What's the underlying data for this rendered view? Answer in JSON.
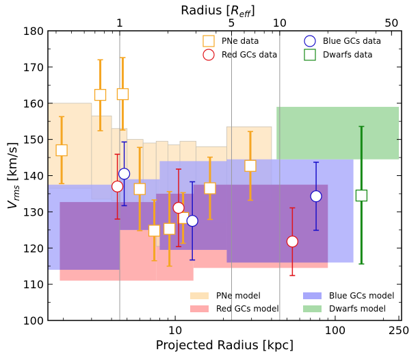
{
  "chart_data": {
    "type": "scatter",
    "xlabel": "Projected Radius [kpc]",
    "ylabel_main": "V",
    "ylabel_sub": "rms",
    "ylabel_units": " [km/s]",
    "top_xlabel_main": "Radius [",
    "top_xlabel_sub": "eff",
    "top_xlabel_end": "]",
    "top_xlabel_R": "R",
    "xscale": "log",
    "xlim": [
      1.6,
      260
    ],
    "ylim": [
      100,
      180
    ],
    "yticks": [
      100,
      110,
      120,
      130,
      140,
      150,
      160,
      170,
      180
    ],
    "xticks": [
      {
        "value": 10,
        "label": "10"
      },
      {
        "value": 100,
        "label": "100"
      },
      {
        "value": 250,
        "label": "250"
      }
    ],
    "top_xticks": [
      {
        "value": 4.5,
        "label": "1"
      },
      {
        "value": 22.5,
        "label": "5"
      },
      {
        "value": 45,
        "label": "10"
      },
      {
        "value": 225,
        "label": "50"
      }
    ],
    "vlines": [
      4.5,
      22.5,
      45
    ],
    "colors": {
      "pne": "#f5a623",
      "pne_fill": "#fde2b8",
      "red": "#e0151b",
      "red_fill": "#ffadad",
      "blue": "#1b12c9",
      "blue_fill": "#a8a8fb",
      "green": "#178a17",
      "green_fill": "#a9dba9",
      "overlap": "#a571c4"
    },
    "models": {
      "pne": [
        {
          "x": [
            1.6,
            3.0
          ],
          "y": [
            136.5,
            160.0
          ]
        },
        {
          "x": [
            3.0,
            4.0
          ],
          "y": [
            133.5,
            156.5
          ]
        },
        {
          "x": [
            4.0,
            5.0
          ],
          "y": [
            133.0,
            153.0
          ]
        },
        {
          "x": [
            5.0,
            6.3
          ],
          "y": [
            128.5,
            150.0
          ]
        },
        {
          "x": [
            6.3,
            7.6
          ],
          "y": [
            126.5,
            149.0
          ]
        },
        {
          "x": [
            7.6,
            9.0
          ],
          "y": [
            120.5,
            149.5
          ]
        },
        {
          "x": [
            9.0,
            10.7
          ],
          "y": [
            127.0,
            148.5
          ]
        },
        {
          "x": [
            10.7,
            13.5
          ],
          "y": [
            128.0,
            149.5
          ]
        },
        {
          "x": [
            13.5,
            21.0
          ],
          "y": [
            127.0,
            148.0
          ]
        },
        {
          "x": [
            21.0,
            40.0
          ],
          "y": [
            133.0,
            153.5
          ]
        }
      ],
      "red": [
        {
          "x": [
            1.9,
            7.6
          ],
          "y": [
            111.0,
            132.7
          ]
        },
        {
          "x": [
            7.6,
            13.0
          ],
          "y": [
            111.0,
            135.0
          ]
        },
        {
          "x": [
            13.0,
            90.0
          ],
          "y": [
            114.5,
            137.5
          ]
        }
      ],
      "blue": [
        {
          "x": [
            1.6,
            4.5
          ],
          "y": [
            114.0,
            137.5
          ]
        },
        {
          "x": [
            4.5,
            8.0
          ],
          "y": [
            125.0,
            139.0
          ]
        },
        {
          "x": [
            8.0,
            21.0
          ],
          "y": [
            119.5,
            144.0
          ]
        },
        {
          "x": [
            21.0,
            130.0
          ],
          "y": [
            116.0,
            144.5
          ]
        }
      ],
      "dwarfs": [
        {
          "x": [
            43.0,
            250.0
          ],
          "y": [
            144.5,
            159.0
          ]
        }
      ]
    },
    "series": [
      {
        "name": "PNe data",
        "marker": "square",
        "color_key": "pne",
        "points": [
          {
            "x": 1.95,
            "y": 147.0,
            "lo": 137.8,
            "hi": 156.3
          },
          {
            "x": 3.4,
            "y": 162.3,
            "lo": 152.4,
            "hi": 172.0
          },
          {
            "x": 4.7,
            "y": 162.5,
            "lo": 152.6,
            "hi": 172.6
          },
          {
            "x": 6.0,
            "y": 136.3,
            "lo": 124.8,
            "hi": 147.8
          },
          {
            "x": 7.4,
            "y": 124.8,
            "lo": 116.5,
            "hi": 133.3
          },
          {
            "x": 9.2,
            "y": 125.3,
            "lo": 115.0,
            "hi": 135.6
          },
          {
            "x": 11.2,
            "y": 128.3,
            "lo": 121.3,
            "hi": 135.3
          },
          {
            "x": 16.5,
            "y": 136.5,
            "lo": 127.9,
            "hi": 145.1
          },
          {
            "x": 29.5,
            "y": 142.7,
            "lo": 133.2,
            "hi": 152.2
          }
        ]
      },
      {
        "name": "Red GCs data",
        "marker": "circle",
        "color_key": "red",
        "points": [
          {
            "x": 4.35,
            "y": 137.0,
            "lo": 128.0,
            "hi": 145.9
          },
          {
            "x": 10.5,
            "y": 131.1,
            "lo": 120.4,
            "hi": 141.8
          },
          {
            "x": 54.0,
            "y": 121.8,
            "lo": 112.4,
            "hi": 131.1
          }
        ]
      },
      {
        "name": "Blue GCs data",
        "marker": "circle",
        "color_key": "blue",
        "points": [
          {
            "x": 4.8,
            "y": 140.5,
            "lo": 131.7,
            "hi": 149.3
          },
          {
            "x": 12.8,
            "y": 127.5,
            "lo": 116.7,
            "hi": 138.3
          },
          {
            "x": 76.0,
            "y": 134.3,
            "lo": 124.9,
            "hi": 143.7
          }
        ]
      },
      {
        "name": "Dwarfs data",
        "marker": "square",
        "color_key": "green",
        "points": [
          {
            "x": 146.0,
            "y": 134.5,
            "lo": 115.6,
            "hi": 153.6
          }
        ]
      }
    ],
    "legend_top": [
      {
        "label": "PNe data",
        "marker": "square",
        "color_key": "pne"
      },
      {
        "label": "Blue GCs data",
        "marker": "circle",
        "color_key": "blue"
      },
      {
        "label": "Red GCs data",
        "marker": "circle",
        "color_key": "red"
      },
      {
        "label": "Dwarfs data",
        "marker": "square",
        "color_key": "green"
      }
    ],
    "legend_bottom": [
      {
        "label": "PNe model",
        "color_key": "pne_fill"
      },
      {
        "label": "Blue GCs model",
        "color_key": "blue_fill"
      },
      {
        "label": "Red GCs model",
        "color_key": "red_fill"
      },
      {
        "label": "Dwarfs model",
        "color_key": "green_fill"
      }
    ]
  }
}
